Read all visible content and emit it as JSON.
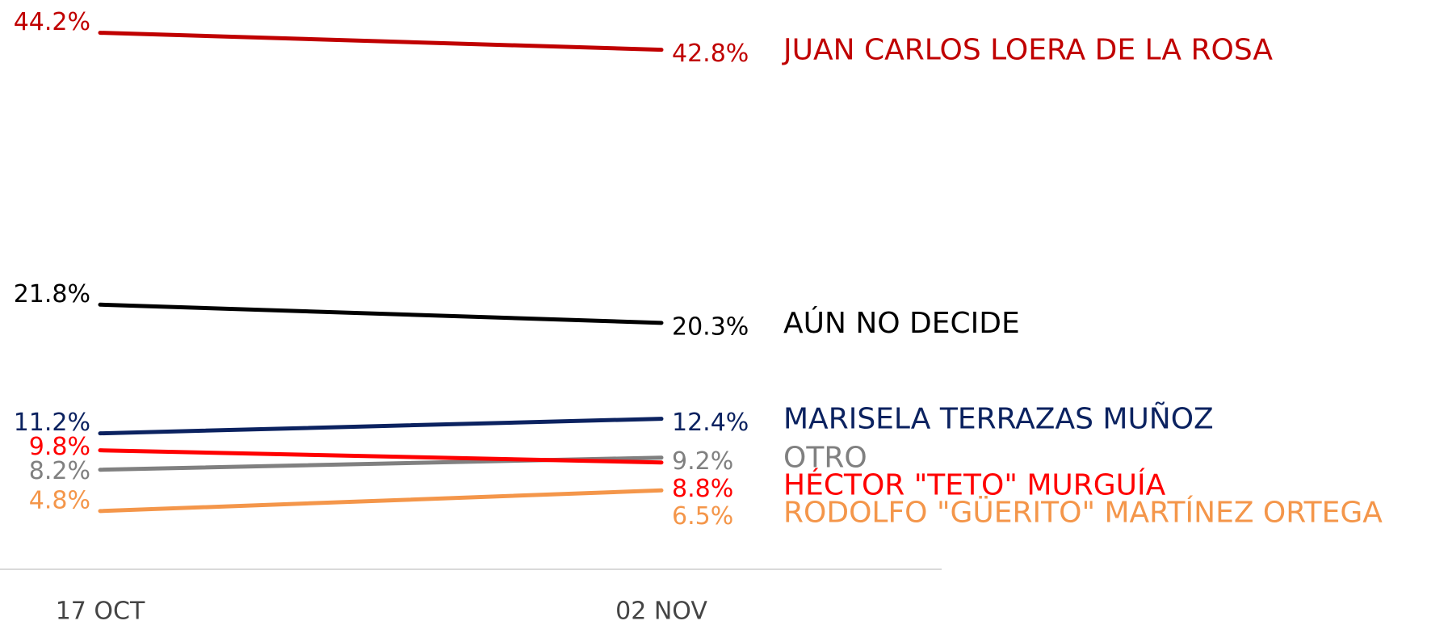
{
  "chart_data": {
    "type": "line",
    "categories": [
      "17 OCT",
      "02 NOV"
    ],
    "ylim": [
      0,
      46.9
    ],
    "series": [
      {
        "name": "JUAN CARLOS LOERA DE LA ROSA",
        "color": "#c00000",
        "values": [
          44.2,
          42.8
        ],
        "value_labels": [
          "44.2%",
          "42.8%"
        ]
      },
      {
        "name": "AÚN NO DECIDE",
        "color": "#000000",
        "values": [
          21.8,
          20.3
        ],
        "value_labels": [
          "21.8%",
          "20.3%"
        ]
      },
      {
        "name": "MARISELA TERRAZAS MUÑOZ",
        "color": "#0b2260",
        "values": [
          11.2,
          12.4
        ],
        "value_labels": [
          "11.2%",
          "12.4%"
        ]
      },
      {
        "name": "OTRO",
        "color": "#808080",
        "values": [
          8.2,
          9.2
        ],
        "value_labels": [
          "8.2%",
          "9.2%"
        ]
      },
      {
        "name": "HÉCTOR \"TETO\" MURGUÍA",
        "color": "#ff0000",
        "values": [
          9.8,
          8.8
        ],
        "value_labels": [
          "9.8%",
          "8.8%"
        ]
      },
      {
        "name": "RODOLFO \"GÜERITO\" MARTÍNEZ ORTEGA",
        "color": "#f4964a",
        "values": [
          4.8,
          6.5
        ],
        "value_labels": [
          "4.8%",
          "6.5%"
        ]
      }
    ]
  }
}
